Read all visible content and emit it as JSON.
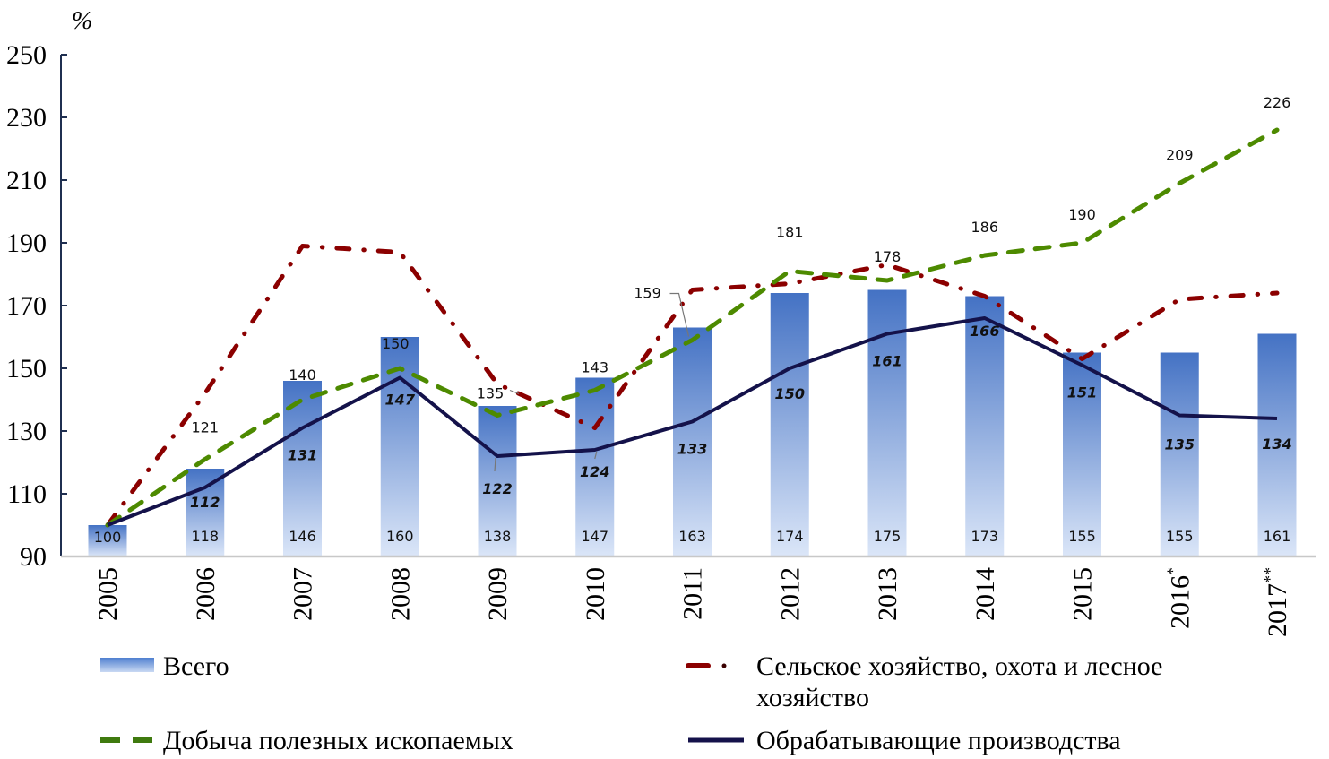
{
  "chart_data": {
    "type": "bar+line",
    "unit_label": "%",
    "categories": [
      "2005",
      "2006",
      "2007",
      "2008",
      "2009",
      "2010",
      "2011",
      "2012",
      "2013",
      "2014",
      "2015",
      "2016",
      "2017"
    ],
    "category_superscripts": [
      "",
      "",
      "",
      "",
      "",
      "",
      "",
      "",
      "",
      "",
      "",
      "*",
      "**"
    ],
    "ylim": [
      90,
      250
    ],
    "yticks": [
      90,
      110,
      130,
      150,
      170,
      190,
      210,
      230,
      250
    ],
    "grid": false,
    "legend_position": "bottom",
    "series": [
      {
        "name": "Всего",
        "kind": "bar",
        "color": "#4472c4",
        "values": [
          100,
          118,
          146,
          160,
          138,
          147,
          163,
          174,
          175,
          173,
          155,
          155,
          161
        ],
        "labels": [
          "100",
          "118",
          "146",
          "160",
          "138",
          "147",
          "163",
          "174",
          "175",
          "173",
          "155",
          "155",
          "161"
        ]
      },
      {
        "name": "Сельское хозяйство, охота и лесное хозяйство",
        "name_lines": [
          "Сельское хозяйство, охота и лесное",
          "хозяйство"
        ],
        "kind": "line",
        "style": "dash-dot",
        "color": "#8b0000",
        "values": [
          100,
          142,
          189,
          187,
          145,
          131,
          175,
          177,
          183,
          173,
          153,
          172,
          174
        ]
      },
      {
        "name": "Добыча полезных ископаемых",
        "kind": "line",
        "style": "dashed",
        "color": "#4d8a00",
        "values": [
          100,
          121,
          140,
          150,
          135,
          143,
          159,
          181,
          178,
          186,
          190,
          209,
          226
        ],
        "labels": [
          "",
          "121",
          "140",
          "150",
          "135",
          "143",
          "159",
          "181",
          "178",
          "186",
          "190",
          "209",
          "226"
        ]
      },
      {
        "name": "Обрабатывающие производства",
        "kind": "line",
        "style": "solid",
        "color": "#14124a",
        "values": [
          100,
          112,
          131,
          147,
          122,
          124,
          133,
          150,
          161,
          166,
          151,
          135,
          134
        ],
        "labels": [
          "",
          "112",
          "131",
          "147",
          "122",
          "124",
          "133",
          "150",
          "161",
          "166",
          "151",
          "135",
          "134"
        ]
      }
    ]
  }
}
